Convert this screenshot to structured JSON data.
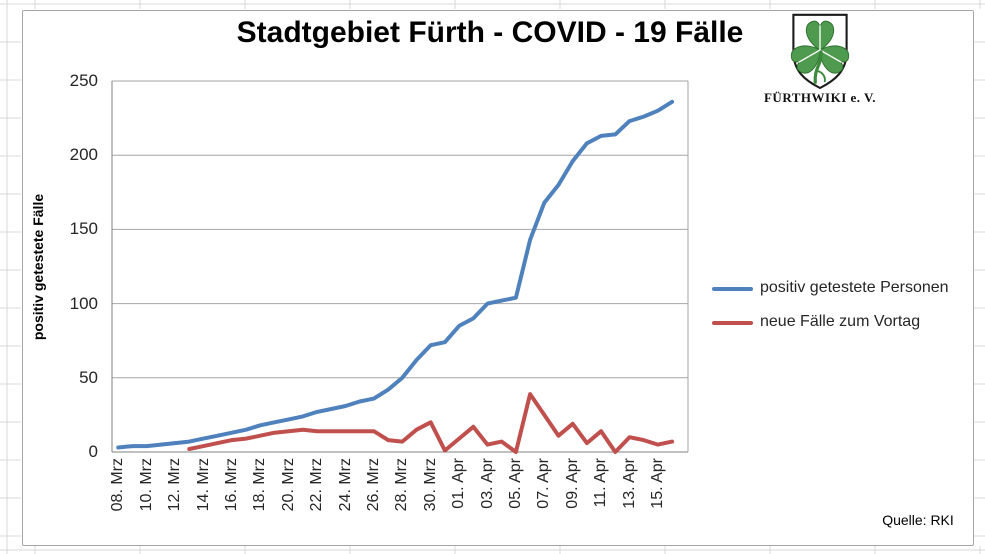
{
  "logo": {
    "org": "FÜRTHWIKI e. V."
  },
  "chart_data": {
    "type": "line",
    "title": "Stadtgebiet Fürth - COVID - 19 Fälle",
    "xlabel": "",
    "ylabel": "positiv getestete Fälle",
    "source": "Quelle: RKI",
    "ylim": [
      0,
      250
    ],
    "yticks": [
      0,
      50,
      100,
      150,
      200,
      250
    ],
    "grid": "horizontal",
    "legend_position": "right",
    "x_tick_labels": [
      "08. Mrz",
      "10. Mrz",
      "12. Mrz",
      "14. Mrz",
      "16. Mrz",
      "18. Mrz",
      "20. Mrz",
      "22. Mrz",
      "24. Mrz",
      "26. Mrz",
      "28. Mrz",
      "30. Mrz",
      "01. Apr",
      "03. Apr",
      "05. Apr",
      "07. Apr",
      "09. Apr",
      "11. Apr",
      "13. Apr",
      "15. Apr"
    ],
    "x_days_span": "daily points from 08. Mrz to 16. Apr (40 days), labels every 2nd day",
    "series": [
      {
        "name": "positiv getestete Personen",
        "color": "#4F81BD",
        "values": [
          3,
          4,
          4,
          5,
          6,
          7,
          9,
          11,
          13,
          15,
          18,
          20,
          22,
          24,
          27,
          29,
          31,
          34,
          36,
          42,
          50,
          62,
          72,
          74,
          85,
          90,
          100,
          102,
          104,
          143,
          168,
          180,
          196,
          208,
          213,
          214,
          223,
          226,
          230,
          236
        ]
      },
      {
        "name": "neue Fälle zum Vortag",
        "color": "#C0504D",
        "values": [
          null,
          null,
          null,
          null,
          null,
          2,
          4,
          6,
          8,
          9,
          11,
          13,
          14,
          15,
          14,
          14,
          14,
          14,
          14,
          8,
          7,
          15,
          20,
          1,
          9,
          17,
          5,
          7,
          0,
          39,
          25,
          11,
          19,
          6,
          14,
          0,
          10,
          8,
          5,
          7
        ]
      }
    ]
  }
}
